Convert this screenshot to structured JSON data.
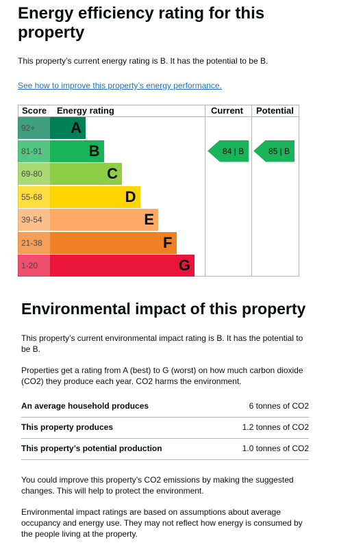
{
  "heading": "Energy efficiency rating for this property",
  "intro": "This property’s current energy rating is B. It has the potential to be B.",
  "improve_link": "See how to improve this property’s energy performance.",
  "chart_data": {
    "type": "table",
    "headers": {
      "score": "Score",
      "rating": "Energy rating",
      "current": "Current",
      "potential": "Potential"
    },
    "bands": [
      {
        "range": "92+",
        "letter": "A",
        "color": "#008054"
      },
      {
        "range": "81-91",
        "letter": "B",
        "color": "#19b459"
      },
      {
        "range": "69-80",
        "letter": "C",
        "color": "#8dce46"
      },
      {
        "range": "55-68",
        "letter": "D",
        "color": "#ffd500"
      },
      {
        "range": "39-54",
        "letter": "E",
        "color": "#fcaa65"
      },
      {
        "range": "21-38",
        "letter": "F",
        "color": "#ef8023"
      },
      {
        "range": "1-20",
        "letter": "G",
        "color": "#e9153b"
      }
    ],
    "current": {
      "value": 84,
      "band": "B",
      "label": "84 |  B",
      "color": "#19b459"
    },
    "potential": {
      "value": 85,
      "band": "B",
      "label": "85 |  B",
      "color": "#19b459"
    }
  },
  "env": {
    "heading": "Environmental impact of this property",
    "p1": "This property’s current environmental impact rating is B. It has the potential to be B.",
    "p2": "Properties get a rating from A (best) to G (worst) on how much carbon dioxide (CO2) they produce each year. CO2 harms the environment.",
    "rows": [
      {
        "label": "An average household produces",
        "value": "6 tonnes of CO2"
      },
      {
        "label": "This property produces",
        "value": "1.2 tonnes of CO2"
      },
      {
        "label": "This property’s potential production",
        "value": "1.0 tonnes of CO2"
      }
    ],
    "p3": "You could improve this property’s CO2 emissions by making the suggested changes. This will help to protect the environment.",
    "p4": "Environmental impact ratings are based on assumptions about average occupancy and energy use. They may not reflect how energy is consumed by the people living at the property."
  }
}
